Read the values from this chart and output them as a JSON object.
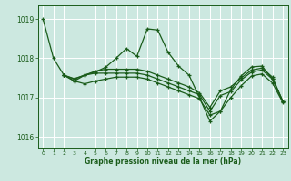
{
  "background_color": "#cce8e0",
  "plot_bg_color": "#cce8e0",
  "grid_color": "#ffffff",
  "line_color": "#1a5c1a",
  "xlabel": "Graphe pression niveau de la mer (hPa)",
  "ylim": [
    1015.7,
    1019.35
  ],
  "xlim": [
    -0.5,
    23.5
  ],
  "yticks": [
    1016,
    1017,
    1018,
    1019
  ],
  "xticks": [
    0,
    1,
    2,
    3,
    4,
    5,
    6,
    7,
    8,
    9,
    10,
    11,
    12,
    13,
    14,
    15,
    16,
    17,
    18,
    19,
    20,
    21,
    22,
    23
  ],
  "series1": [
    [
      0,
      1019.0
    ],
    [
      1,
      1018.0
    ],
    [
      2,
      1017.57
    ],
    [
      3,
      1017.48
    ],
    [
      4,
      1017.57
    ],
    [
      5,
      1017.65
    ],
    [
      6,
      1017.77
    ],
    [
      7,
      1018.0
    ],
    [
      8,
      1018.25
    ],
    [
      9,
      1018.05
    ],
    [
      10,
      1018.75
    ],
    [
      11,
      1018.72
    ],
    [
      12,
      1018.15
    ],
    [
      13,
      1017.8
    ],
    [
      14,
      1017.57
    ],
    [
      15,
      1017.0
    ],
    [
      16,
      1016.4
    ],
    [
      17,
      1016.65
    ],
    [
      18,
      1017.2
    ],
    [
      19,
      1017.55
    ],
    [
      20,
      1017.78
    ],
    [
      21,
      1017.8
    ],
    [
      22,
      1017.47
    ],
    [
      23,
      1016.9
    ]
  ],
  "series2": [
    [
      2,
      1017.57
    ],
    [
      3,
      1017.42
    ],
    [
      4,
      1017.35
    ],
    [
      5,
      1017.42
    ],
    [
      6,
      1017.47
    ],
    [
      7,
      1017.52
    ],
    [
      8,
      1017.52
    ],
    [
      9,
      1017.52
    ],
    [
      10,
      1017.47
    ],
    [
      11,
      1017.37
    ],
    [
      12,
      1017.27
    ],
    [
      13,
      1017.17
    ],
    [
      14,
      1017.07
    ],
    [
      15,
      1016.97
    ],
    [
      16,
      1016.55
    ],
    [
      17,
      1016.65
    ],
    [
      18,
      1017.0
    ],
    [
      19,
      1017.3
    ],
    [
      20,
      1017.55
    ],
    [
      21,
      1017.6
    ],
    [
      22,
      1017.37
    ],
    [
      23,
      1016.87
    ]
  ],
  "series3": [
    [
      2,
      1017.57
    ],
    [
      3,
      1017.42
    ],
    [
      4,
      1017.57
    ],
    [
      5,
      1017.62
    ],
    [
      6,
      1017.62
    ],
    [
      7,
      1017.62
    ],
    [
      8,
      1017.62
    ],
    [
      9,
      1017.62
    ],
    [
      10,
      1017.57
    ],
    [
      11,
      1017.47
    ],
    [
      12,
      1017.37
    ],
    [
      13,
      1017.27
    ],
    [
      14,
      1017.17
    ],
    [
      15,
      1017.07
    ],
    [
      16,
      1016.65
    ],
    [
      17,
      1017.05
    ],
    [
      18,
      1017.15
    ],
    [
      19,
      1017.45
    ],
    [
      20,
      1017.65
    ],
    [
      21,
      1017.7
    ],
    [
      22,
      1017.47
    ],
    [
      23,
      1016.9
    ]
  ],
  "series4": [
    [
      2,
      1017.57
    ],
    [
      3,
      1017.47
    ],
    [
      4,
      1017.57
    ],
    [
      5,
      1017.67
    ],
    [
      6,
      1017.72
    ],
    [
      7,
      1017.72
    ],
    [
      8,
      1017.72
    ],
    [
      9,
      1017.72
    ],
    [
      10,
      1017.67
    ],
    [
      11,
      1017.57
    ],
    [
      12,
      1017.47
    ],
    [
      13,
      1017.37
    ],
    [
      14,
      1017.27
    ],
    [
      15,
      1017.12
    ],
    [
      16,
      1016.75
    ],
    [
      17,
      1017.17
    ],
    [
      18,
      1017.27
    ],
    [
      19,
      1017.5
    ],
    [
      20,
      1017.7
    ],
    [
      21,
      1017.75
    ],
    [
      22,
      1017.52
    ],
    [
      23,
      1016.9
    ]
  ]
}
